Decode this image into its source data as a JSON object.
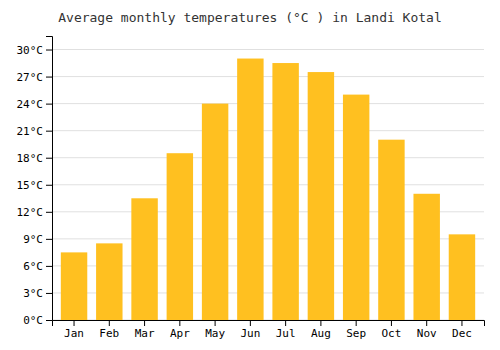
{
  "chart_data": {
    "type": "bar",
    "title": "Average monthly temperatures (°C ) in Landi Kotal",
    "categories": [
      "Jan",
      "Feb",
      "Mar",
      "Apr",
      "May",
      "Jun",
      "Jul",
      "Aug",
      "Sep",
      "Oct",
      "Nov",
      "Dec"
    ],
    "values": [
      7.5,
      8.5,
      13.5,
      18.5,
      24.0,
      29.0,
      28.5,
      27.5,
      25.0,
      20.0,
      14.0,
      9.5
    ],
    "color": "#FFC020",
    "ylim": [
      0,
      31.5
    ],
    "yticks": [
      {
        "value": 0,
        "label": "0°C"
      },
      {
        "value": 3,
        "label": "3°C"
      },
      {
        "value": 6,
        "label": "6°C"
      },
      {
        "value": 9,
        "label": "9°C"
      },
      {
        "value": 12,
        "label": "12°C"
      },
      {
        "value": 15,
        "label": "15°C"
      },
      {
        "value": 18,
        "label": "18°C"
      },
      {
        "value": 21,
        "label": "21°C"
      },
      {
        "value": 24,
        "label": "24°C"
      },
      {
        "value": 27,
        "label": "27°C"
      },
      {
        "value": 30,
        "label": "30°C"
      }
    ],
    "grid": true
  }
}
